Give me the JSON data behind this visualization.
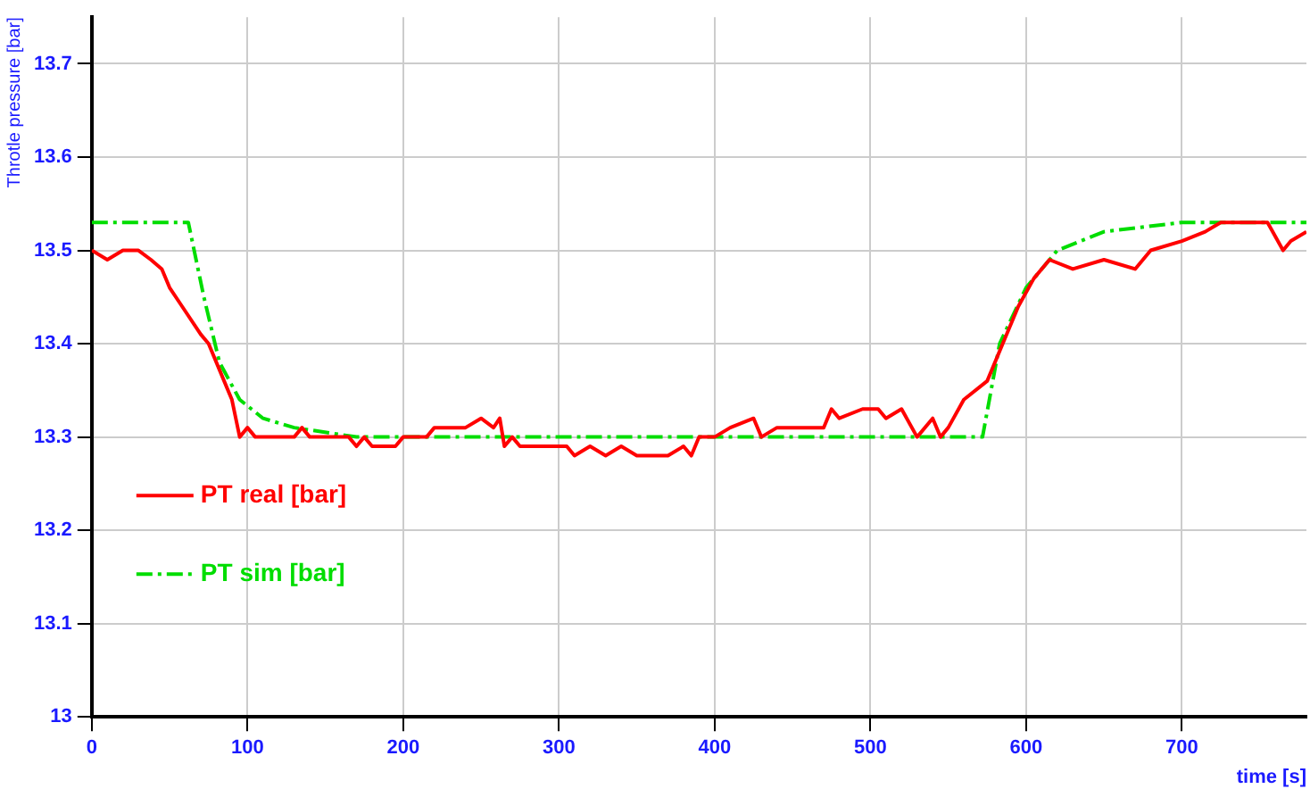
{
  "chart_data": {
    "type": "line",
    "xlabel": "time [s]",
    "ylabel": "Throtle pressure [bar]",
    "xlim": [
      0,
      780
    ],
    "ylim": [
      13,
      13.75
    ],
    "xticks": [
      0,
      100,
      200,
      300,
      400,
      500,
      600,
      700
    ],
    "yticks": [
      13,
      13.1,
      13.2,
      13.3,
      13.4,
      13.5,
      13.6,
      13.7
    ],
    "grid": true,
    "legend": "bottom left",
    "marker": "none",
    "series": [
      {
        "name": "PT real [bar]",
        "color": "#ff0000",
        "line_style": "solid",
        "x": [
          0,
          10,
          20,
          30,
          38,
          45,
          50,
          58,
          70,
          75,
          85,
          90,
          95,
          100,
          105,
          130,
          135,
          140,
          165,
          170,
          175,
          180,
          195,
          200,
          215,
          220,
          240,
          250,
          258,
          262,
          265,
          270,
          275,
          305,
          310,
          320,
          330,
          340,
          350,
          370,
          380,
          385,
          390,
          400,
          410,
          425,
          430,
          440,
          470,
          475,
          480,
          495,
          505,
          510,
          520,
          530,
          540,
          545,
          550,
          560,
          575,
          585,
          595,
          605,
          615,
          630,
          650,
          670,
          680,
          700,
          715,
          725,
          755,
          765,
          770,
          780
        ],
        "values": [
          13.5,
          13.49,
          13.5,
          13.5,
          13.49,
          13.48,
          13.46,
          13.44,
          13.41,
          13.4,
          13.36,
          13.34,
          13.3,
          13.31,
          13.3,
          13.3,
          13.31,
          13.3,
          13.3,
          13.29,
          13.3,
          13.29,
          13.29,
          13.3,
          13.3,
          13.31,
          13.31,
          13.32,
          13.31,
          13.32,
          13.29,
          13.3,
          13.29,
          13.29,
          13.28,
          13.29,
          13.28,
          13.29,
          13.28,
          13.28,
          13.29,
          13.28,
          13.3,
          13.3,
          13.31,
          13.32,
          13.3,
          13.31,
          13.31,
          13.33,
          13.32,
          13.33,
          13.33,
          13.32,
          13.33,
          13.3,
          13.32,
          13.3,
          13.31,
          13.34,
          13.36,
          13.4,
          13.44,
          13.47,
          13.49,
          13.48,
          13.49,
          13.48,
          13.5,
          13.51,
          13.52,
          13.53,
          13.53,
          13.5,
          13.51,
          13.52
        ]
      },
      {
        "name": "PT sim [bar]",
        "color": "#00dd00",
        "line_style": "dashed",
        "x": [
          0,
          62,
          72,
          82,
          95,
          110,
          130,
          170,
          570,
          572,
          583,
          600,
          620,
          650,
          700,
          780
        ],
        "values": [
          13.53,
          13.53,
          13.45,
          13.38,
          13.34,
          13.32,
          13.31,
          13.3,
          13.3,
          13.3,
          13.4,
          13.46,
          13.5,
          13.52,
          13.53,
          13.53
        ]
      }
    ]
  }
}
